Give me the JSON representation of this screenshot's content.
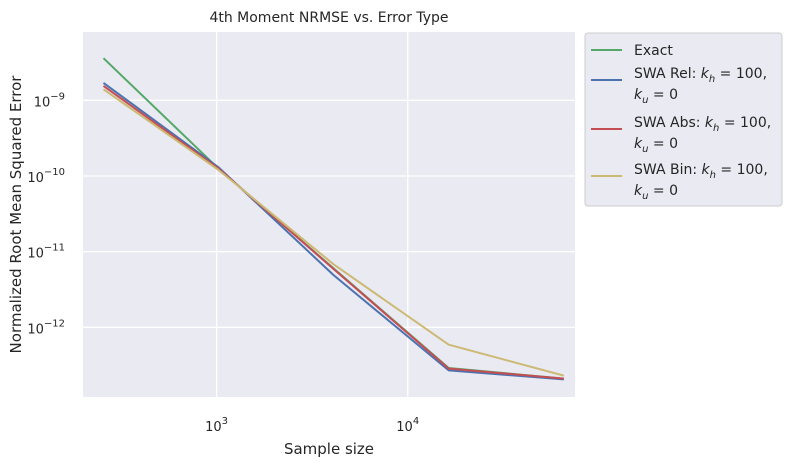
{
  "chart_data": {
    "type": "line",
    "title": "4th Moment NRMSE vs. Error Type",
    "xlabel": "Sample size",
    "ylabel": "Normalized Root Mean Squared Error",
    "xscale": "log",
    "yscale": "log",
    "xlim": [
      200,
      75000
    ],
    "ylim": [
      1.2e-13,
      8e-09
    ],
    "grid": true,
    "legend_position": "outside-upper-right",
    "x_ticks": [
      {
        "value": 1000,
        "base": "10",
        "exp": "3"
      },
      {
        "value": 10000,
        "base": "10",
        "exp": "4"
      }
    ],
    "y_ticks": [
      {
        "value": 1e-09,
        "base": "10",
        "exp": "−9"
      },
      {
        "value": 1e-10,
        "base": "10",
        "exp": "−10"
      },
      {
        "value": 1e-11,
        "base": "10",
        "exp": "−11"
      },
      {
        "value": 1e-12,
        "base": "10",
        "exp": "−12"
      }
    ],
    "x": [
      256,
      1024,
      4096,
      16384,
      65536
    ],
    "series": [
      {
        "name": "Exact",
        "color": "#55a868",
        "legend_lines": [
          {
            "text": "Exact"
          }
        ],
        "values": [
          3.6e-09,
          1.25e-10,
          6e-12,
          2.9e-13,
          2.1e-13
        ]
      },
      {
        "name": "SWA Rel: k_h = 100, k_u = 0",
        "color": "#4c72b0",
        "legend_lines": [
          {
            "prefix": "SWA Rel: ",
            "v1": "k",
            "s1": "h",
            "eq1": " = 100,"
          },
          {
            "v1": "k",
            "s1": "u",
            "eq1": " = 0"
          }
        ],
        "values": [
          1.7e-09,
          1.3e-10,
          4.9e-12,
          2.7e-13,
          2.05e-13
        ]
      },
      {
        "name": "SWA Abs: k_h = 100, k_u = 0",
        "color": "#c44e52",
        "legend_lines": [
          {
            "prefix": "SWA Abs: ",
            "v1": "k",
            "s1": "h",
            "eq1": " = 100,"
          },
          {
            "v1": "k",
            "s1": "u",
            "eq1": " = 0"
          }
        ],
        "values": [
          1.55e-09,
          1.25e-10,
          5.9e-12,
          2.85e-13,
          2.1e-13
        ]
      },
      {
        "name": "SWA Bin: k_h = 100, k_u = 0",
        "color": "#ccb974",
        "legend_lines": [
          {
            "prefix": "SWA Bin: ",
            "v1": "k",
            "s1": "h",
            "eq1": " = 100,"
          },
          {
            "v1": "k",
            "s1": "u",
            "eq1": " = 0"
          }
        ],
        "values": [
          1.4e-09,
          1.2e-10,
          6.8e-12,
          5.9e-13,
          2.3e-13
        ]
      }
    ]
  },
  "style": {
    "plot_background": "#eaeaf2",
    "grid_color": "#ffffff",
    "text_color": "#262626",
    "legend_background": "#eaeaf2",
    "legend_border": "#cccccc"
  }
}
